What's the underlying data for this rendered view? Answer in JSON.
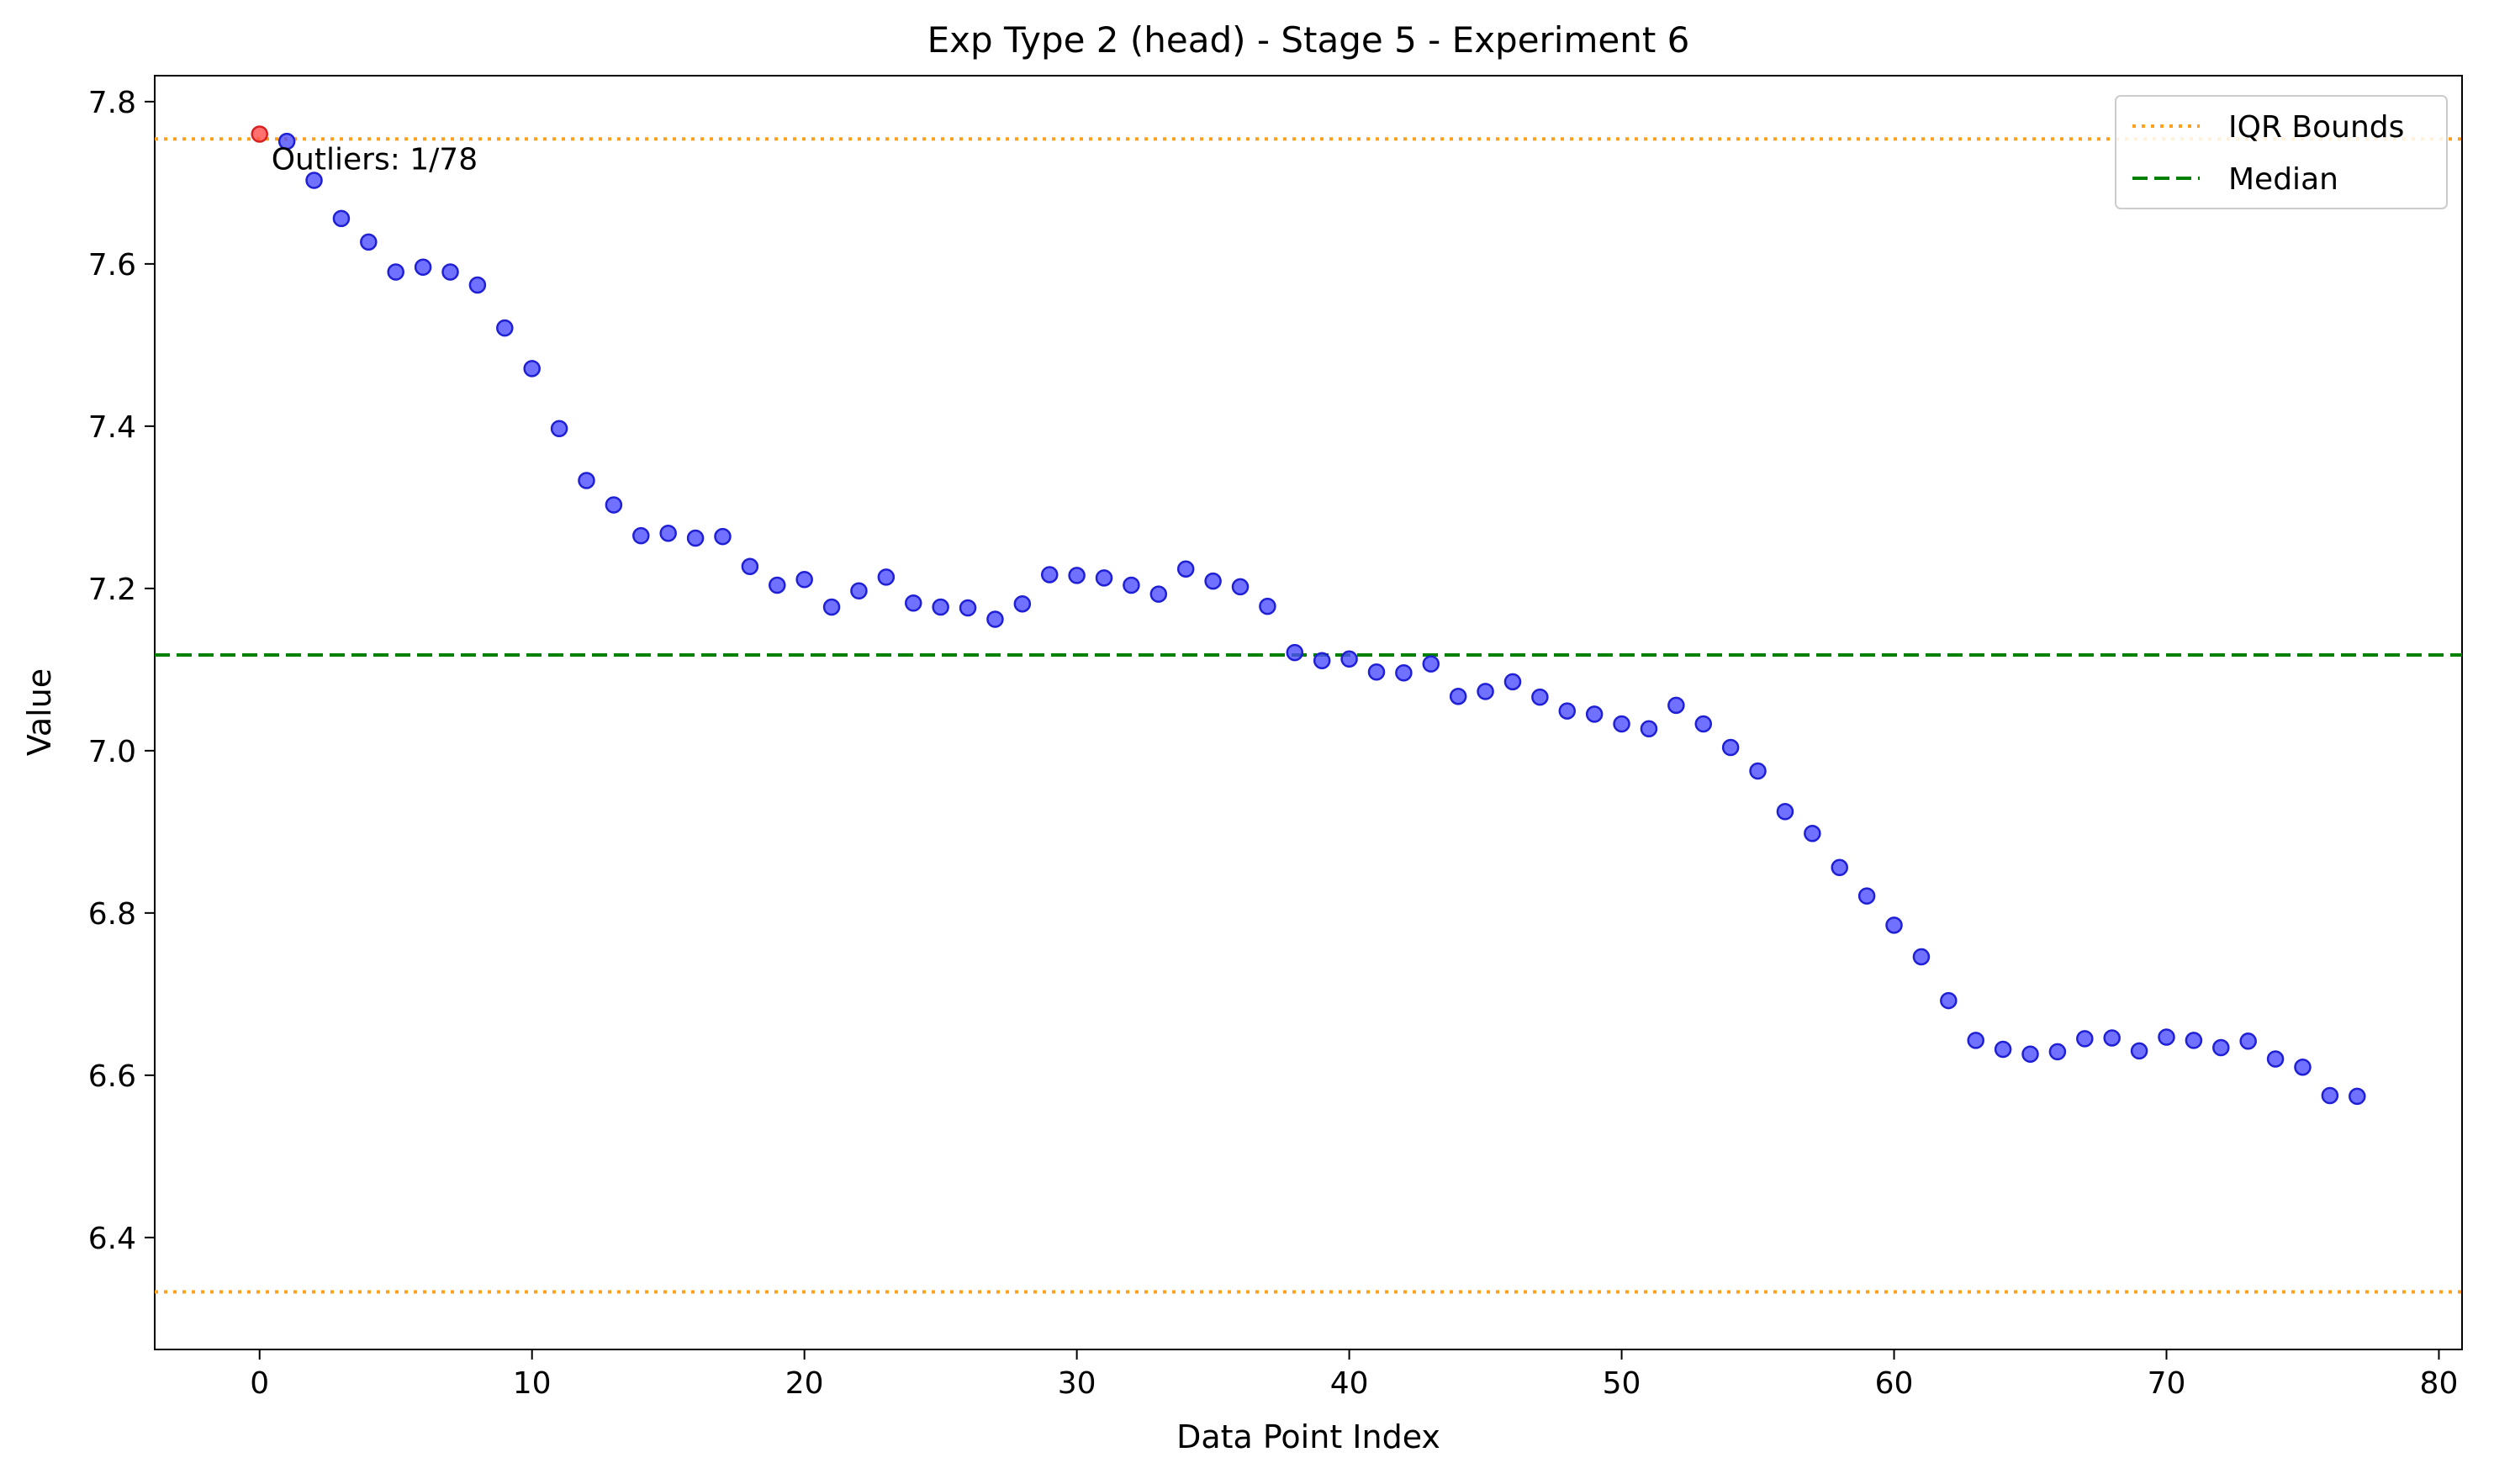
{
  "chart_data": {
    "type": "scatter",
    "title": "Exp Type 2 (head) - Stage 5 - Experiment 6",
    "xlabel": "Data Point Index",
    "ylabel": "Value",
    "xlim": [
      -3.85,
      80.85
    ],
    "ylim": [
      6.262,
      7.832
    ],
    "xticks": [
      0,
      10,
      20,
      30,
      40,
      50,
      60,
      70,
      80
    ],
    "yticks": [
      6.4,
      6.6,
      6.8,
      7.0,
      7.2,
      7.4,
      7.6,
      7.8
    ],
    "xtick_labels": [
      "0",
      "10",
      "20",
      "30",
      "40",
      "50",
      "60",
      "70",
      "80"
    ],
    "ytick_labels": [
      "6.4",
      "6.6",
      "6.8",
      "7.0",
      "7.2",
      "7.4",
      "7.6",
      "7.8"
    ],
    "grid": false,
    "legend_position": "top-right",
    "annotation": "Outliers: 1/78",
    "x": [
      0,
      1,
      2,
      3,
      4,
      5,
      6,
      7,
      8,
      9,
      10,
      11,
      12,
      13,
      14,
      15,
      16,
      17,
      18,
      19,
      20,
      21,
      22,
      23,
      24,
      25,
      26,
      27,
      28,
      29,
      30,
      31,
      32,
      33,
      34,
      35,
      36,
      37,
      38,
      39,
      40,
      41,
      42,
      43,
      44,
      45,
      46,
      47,
      48,
      49,
      50,
      51,
      52,
      53,
      54,
      55,
      56,
      57,
      58,
      59,
      60,
      61,
      62,
      63,
      64,
      65,
      66,
      67,
      68,
      69,
      70,
      71,
      72,
      73,
      74,
      75,
      76,
      77
    ],
    "values": [
      7.76,
      7.751,
      7.703,
      7.656,
      7.627,
      7.59,
      7.596,
      7.59,
      7.574,
      7.521,
      7.471,
      7.397,
      7.333,
      7.303,
      7.265,
      7.268,
      7.262,
      7.264,
      7.227,
      7.204,
      7.211,
      7.177,
      7.197,
      7.214,
      7.182,
      7.177,
      7.176,
      7.162,
      7.181,
      7.217,
      7.216,
      7.213,
      7.204,
      7.193,
      7.224,
      7.209,
      7.202,
      7.178,
      7.121,
      7.111,
      7.113,
      7.097,
      7.096,
      7.107,
      7.067,
      7.073,
      7.085,
      7.066,
      7.049,
      7.045,
      7.033,
      7.027,
      7.056,
      7.033,
      7.004,
      6.975,
      6.925,
      6.898,
      6.856,
      6.821,
      6.785,
      6.746,
      6.692,
      6.643,
      6.632,
      6.626,
      6.629,
      6.645,
      6.646,
      6.63,
      6.647,
      6.643,
      6.634,
      6.642,
      6.62,
      6.61,
      6.575,
      6.574
    ],
    "outlier_indices": [
      0
    ],
    "reference_lines": [
      {
        "name": "IQR Bounds",
        "value": 7.754,
        "style": "dotted",
        "color": "#ff9f1a"
      },
      {
        "name": "",
        "value": 6.333,
        "style": "dotted",
        "color": "#ff9f1a"
      },
      {
        "name": "Median",
        "value": 7.118,
        "style": "dashed",
        "color": "#008000"
      }
    ],
    "legend": [
      {
        "label": "IQR Bounds",
        "style": "dotted",
        "color": "#ff9f1a"
      },
      {
        "label": "Median",
        "style": "dashed",
        "color": "#008000"
      }
    ],
    "colors": {
      "point": "#4d4dff",
      "point_edge": "#1f1fd6",
      "outlier": "#ff4d4d",
      "outlier_edge": "#d91f1f"
    }
  }
}
